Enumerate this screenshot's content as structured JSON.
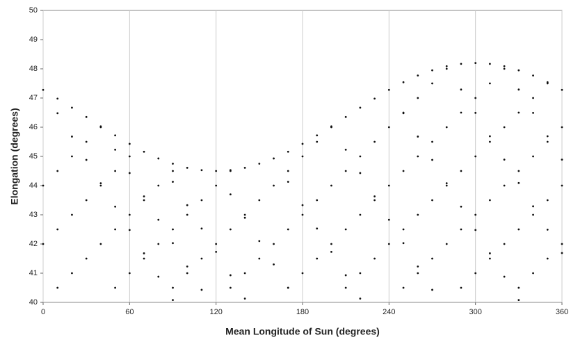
{
  "chart_data": {
    "type": "scatter",
    "xlabel": "Mean Longitude of Sun (degrees)",
    "ylabel": "Elongation (degrees)",
    "xlim": [
      0,
      360
    ],
    "xticks": [
      0,
      60,
      120,
      180,
      240,
      300,
      360
    ],
    "ylim": [
      40,
      50
    ],
    "yticks": [
      40,
      41,
      42,
      43,
      44,
      45,
      46,
      47,
      48,
      49,
      50
    ],
    "grid": true,
    "color": "#111111",
    "series": [
      {
        "x": [
          0,
          10,
          20,
          30,
          40,
          50,
          60,
          70,
          80,
          90,
          100,
          110,
          120,
          130,
          140,
          150,
          160,
          170,
          180,
          190,
          200,
          210,
          220,
          230,
          240,
          250,
          260,
          270,
          280,
          290,
          300,
          310,
          320,
          330,
          340,
          350,
          360
        ],
        "values": [
          47.28,
          46.98,
          46.67,
          46.35,
          46.03,
          45.72,
          45.43,
          45.16,
          44.93,
          44.75,
          44.61,
          44.53,
          44.5,
          44.53,
          44.61,
          44.75,
          44.93,
          45.16,
          45.43,
          45.72,
          46.03,
          46.35,
          46.67,
          46.98,
          47.28,
          47.54,
          47.77,
          47.95,
          48.09,
          48.17,
          48.2,
          48.17,
          48.09,
          47.95,
          47.77,
          47.54,
          47.28
        ]
      },
      {
        "x": [
          10,
          20,
          30,
          40,
          50,
          60,
          70,
          80,
          90
        ],
        "values": [
          46.48,
          45.68,
          44.88,
          44.08,
          43.28,
          42.48,
          41.68,
          40.88,
          40.08
        ]
      },
      {
        "x": [
          50,
          60,
          70,
          80,
          90,
          100,
          110
        ],
        "values": [
          45.23,
          44.43,
          43.63,
          42.83,
          42.03,
          41.23,
          40.43
        ]
      },
      {
        "x": [
          90,
          100,
          110,
          120,
          130,
          140
        ],
        "values": [
          44.13,
          43.33,
          42.53,
          41.73,
          40.93,
          40.13
        ]
      },
      {
        "x": [
          130,
          140,
          150,
          160,
          170
        ],
        "values": [
          43.7,
          42.9,
          42.1,
          41.3,
          40.5
        ]
      },
      {
        "x": [
          170,
          180,
          190,
          200,
          210,
          220
        ],
        "values": [
          44.13,
          43.33,
          42.53,
          41.73,
          40.93,
          40.13
        ]
      },
      {
        "x": [
          210,
          220,
          230,
          240,
          250,
          260,
          270
        ],
        "values": [
          45.23,
          44.43,
          43.63,
          42.83,
          42.03,
          41.23,
          40.43
        ]
      },
      {
        "x": [
          250,
          260,
          270,
          280,
          290,
          300,
          310,
          320,
          330
        ],
        "values": [
          46.48,
          45.68,
          44.88,
          44.08,
          43.28,
          42.48,
          41.68,
          40.88,
          40.08
        ]
      },
      {
        "x": [
          290,
          300,
          310,
          320,
          330,
          340,
          350,
          360
        ],
        "values": [
          47.29,
          46.49,
          45.69,
          44.89,
          44.09,
          43.29,
          42.49,
          41.69
        ]
      },
      {
        "x": [
          330,
          340,
          350,
          360
        ],
        "values": [
          47.29,
          46.49,
          45.69,
          44.89
        ]
      },
      {
        "x": [
          0,
          10,
          20,
          30,
          40
        ],
        "values": [
          44,
          44.5,
          45,
          45.5,
          46
        ]
      },
      {
        "x": [
          0,
          10,
          20,
          30,
          40,
          50,
          60
        ],
        "values": [
          42,
          42.5,
          43,
          43.5,
          44,
          44.5,
          45
        ]
      },
      {
        "x": [
          10,
          20,
          30,
          40,
          50,
          60,
          70,
          80,
          90
        ],
        "values": [
          40.5,
          41,
          41.5,
          42,
          42.5,
          43,
          43.5,
          44,
          44.5
        ]
      },
      {
        "x": [
          50,
          60,
          70,
          80,
          90,
          100,
          110,
          120,
          130
        ],
        "values": [
          40.5,
          41,
          41.5,
          42,
          42.5,
          43,
          43.5,
          44,
          44.5
        ]
      },
      {
        "x": [
          90,
          100,
          110,
          120,
          130,
          140,
          150,
          160,
          170,
          180,
          190,
          200
        ],
        "values": [
          40.5,
          41,
          41.5,
          42,
          42.5,
          43,
          43.5,
          44,
          44.5,
          45,
          45.5,
          46
        ]
      },
      {
        "x": [
          130,
          140,
          150,
          160,
          170,
          180,
          190,
          200,
          210,
          220,
          230,
          240,
          250,
          260,
          270,
          280
        ],
        "values": [
          40.5,
          41,
          41.5,
          42,
          42.5,
          43,
          43.5,
          44,
          44.5,
          45,
          45.5,
          46,
          46.5,
          47,
          47.5,
          48
        ]
      },
      {
        "x": [
          170,
          180,
          190,
          200,
          210,
          220,
          230,
          240,
          250,
          260,
          270,
          280,
          290,
          300,
          310,
          320
        ],
        "values": [
          40.5,
          41,
          41.5,
          42,
          42.5,
          43,
          43.5,
          44,
          44.5,
          45,
          45.5,
          46,
          46.5,
          47,
          47.5,
          48
        ]
      },
      {
        "x": [
          210,
          220,
          230,
          240,
          250,
          260,
          270,
          280,
          290,
          300,
          310,
          320,
          330,
          340,
          350
        ],
        "values": [
          40.5,
          41,
          41.5,
          42,
          42.5,
          43,
          43.5,
          44,
          44.5,
          45,
          45.5,
          46,
          46.5,
          47,
          47.5
        ]
      },
      {
        "x": [
          250,
          260,
          270,
          280,
          290,
          300,
          310,
          320,
          330,
          340,
          350,
          360
        ],
        "values": [
          40.5,
          41,
          41.5,
          42,
          42.5,
          43,
          43.5,
          44,
          44.5,
          45,
          45.5,
          46
        ]
      },
      {
        "x": [
          290,
          300,
          310,
          320,
          330,
          340,
          350,
          360
        ],
        "values": [
          40.5,
          41,
          41.5,
          42,
          42.5,
          43,
          43.5,
          44
        ]
      },
      {
        "x": [
          330,
          340,
          350,
          360
        ],
        "values": [
          40.5,
          41,
          41.5,
          42
        ]
      }
    ]
  }
}
